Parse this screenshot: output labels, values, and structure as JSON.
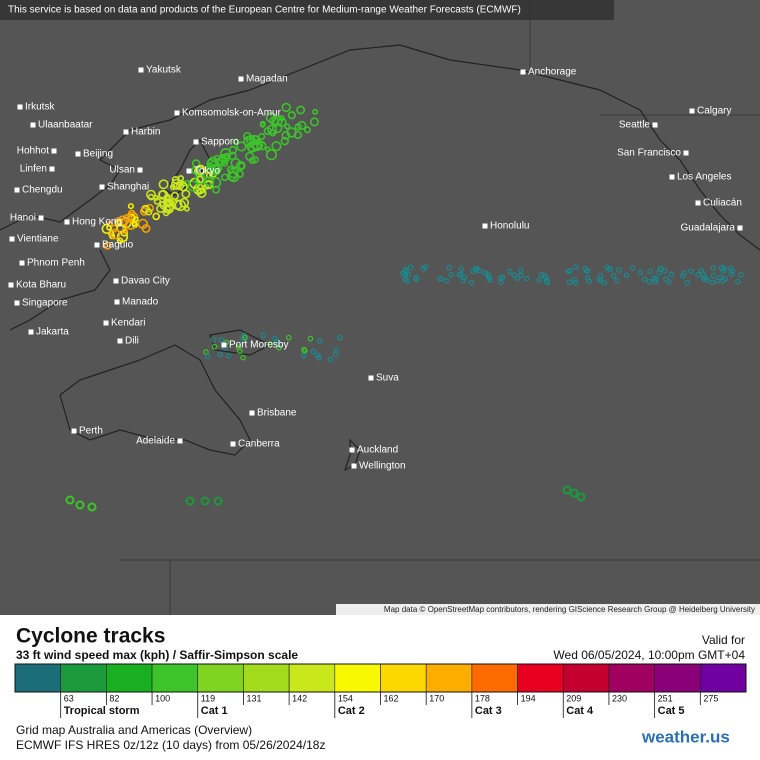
{
  "header": {
    "notice": "This service is based on data and products of the European Centre for Medium-range Weather Forecasts (ECMWF)"
  },
  "map": {
    "cities": [
      "Yakutsk",
      "Magadan",
      "Anchorage",
      "Irkutsk",
      "Ulaanbaatar",
      "Komsomolsk-on-Amur",
      "Harbin",
      "Calgary",
      "Seattle",
      "Hohhot",
      "Beijing",
      "Sapporo",
      "San Francisco",
      "Linfen",
      "Ulsan",
      "Tokyo",
      "Los Angeles",
      "Chengdu",
      "Shanghai",
      "Culiacán",
      "Hanoi",
      "Hong Kong",
      "Honolulu",
      "Guadalajara",
      "Vientiane",
      "Baguio",
      "Phnom Penh",
      "Davao City",
      "Kota Bharu",
      "Singapore",
      "Manado",
      "Kendari",
      "Jakarta",
      "Dili",
      "Port Moresby",
      "Suva",
      "Brisbane",
      "Perth",
      "Adelaide",
      "Canberra",
      "Auckland",
      "Wellington"
    ],
    "attribution": "Map data © OpenStreetMap contributors, rendering GIScience Research Group @ Heidelberg University"
  },
  "legend": {
    "title": "Cyclone tracks",
    "subtitle": "33 ft wind speed max (kph) / Saffir-Simpson scale",
    "valid_label": "Valid for",
    "valid_time": "Wed 06/05/2024, 10:00pm GMT+04",
    "ticks": [
      63,
      82,
      100,
      119,
      131,
      142,
      154,
      162,
      170,
      178,
      194,
      209,
      230,
      251,
      275
    ],
    "colors": [
      "#1b6e78",
      "#1b9a3c",
      "#18b020",
      "#3cc42a",
      "#7ed420",
      "#a2dc1c",
      "#c8e81c",
      "#f8f800",
      "#fcd800",
      "#fcae00",
      "#fc6a00",
      "#e80020",
      "#c40030",
      "#a00060",
      "#8a0078",
      "#7000a0"
    ],
    "categories": [
      "Tropical storm",
      "Cat 1",
      "Cat 2",
      "Cat 3",
      "Cat 4",
      "Cat 5"
    ]
  },
  "footer": {
    "grid": "Grid map Australia and Americas (Overview)",
    "model": "ECMWF IFS HRES 0z/12z (10 days) from  05/26/2024/18z",
    "brand": "weather.us"
  }
}
